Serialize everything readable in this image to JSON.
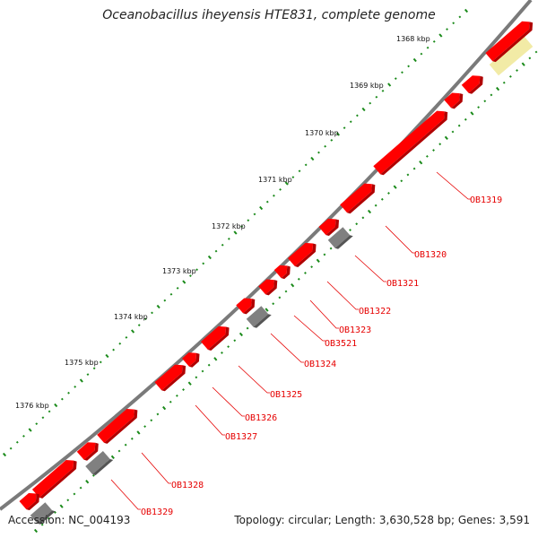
{
  "title": "Oceanobacillus iheyensis HTE831, complete genome",
  "footer": {
    "accession": "Accession: NC_004193",
    "summary": "Topology: circular; Length: 3,630,528 bp; Genes: 3,591"
  },
  "colors": {
    "gene": "#ff0000",
    "gene_dark": "#b00000",
    "pseudo": "#808080",
    "pseudo_dark": "#555555",
    "ruler": "#7a7a7a",
    "dot_scale": "#1a8a1a",
    "label": "#e60000",
    "highlight": "#f2eba6"
  },
  "scale_ticks": [
    "1368 kbp",
    "1369 kbp",
    "1370 kbp",
    "1371 kbp",
    "1372 kbp",
    "1373 kbp",
    "1374 kbp",
    "1375 kbp",
    "1376 kbp"
  ],
  "gene_labels": [
    "OB1319",
    "OB1320",
    "OB1321",
    "OB1322",
    "OB1323",
    "OB3521",
    "OB1324",
    "OB1325",
    "OB1326",
    "OB1327",
    "OB1328",
    "OB1329"
  ]
}
